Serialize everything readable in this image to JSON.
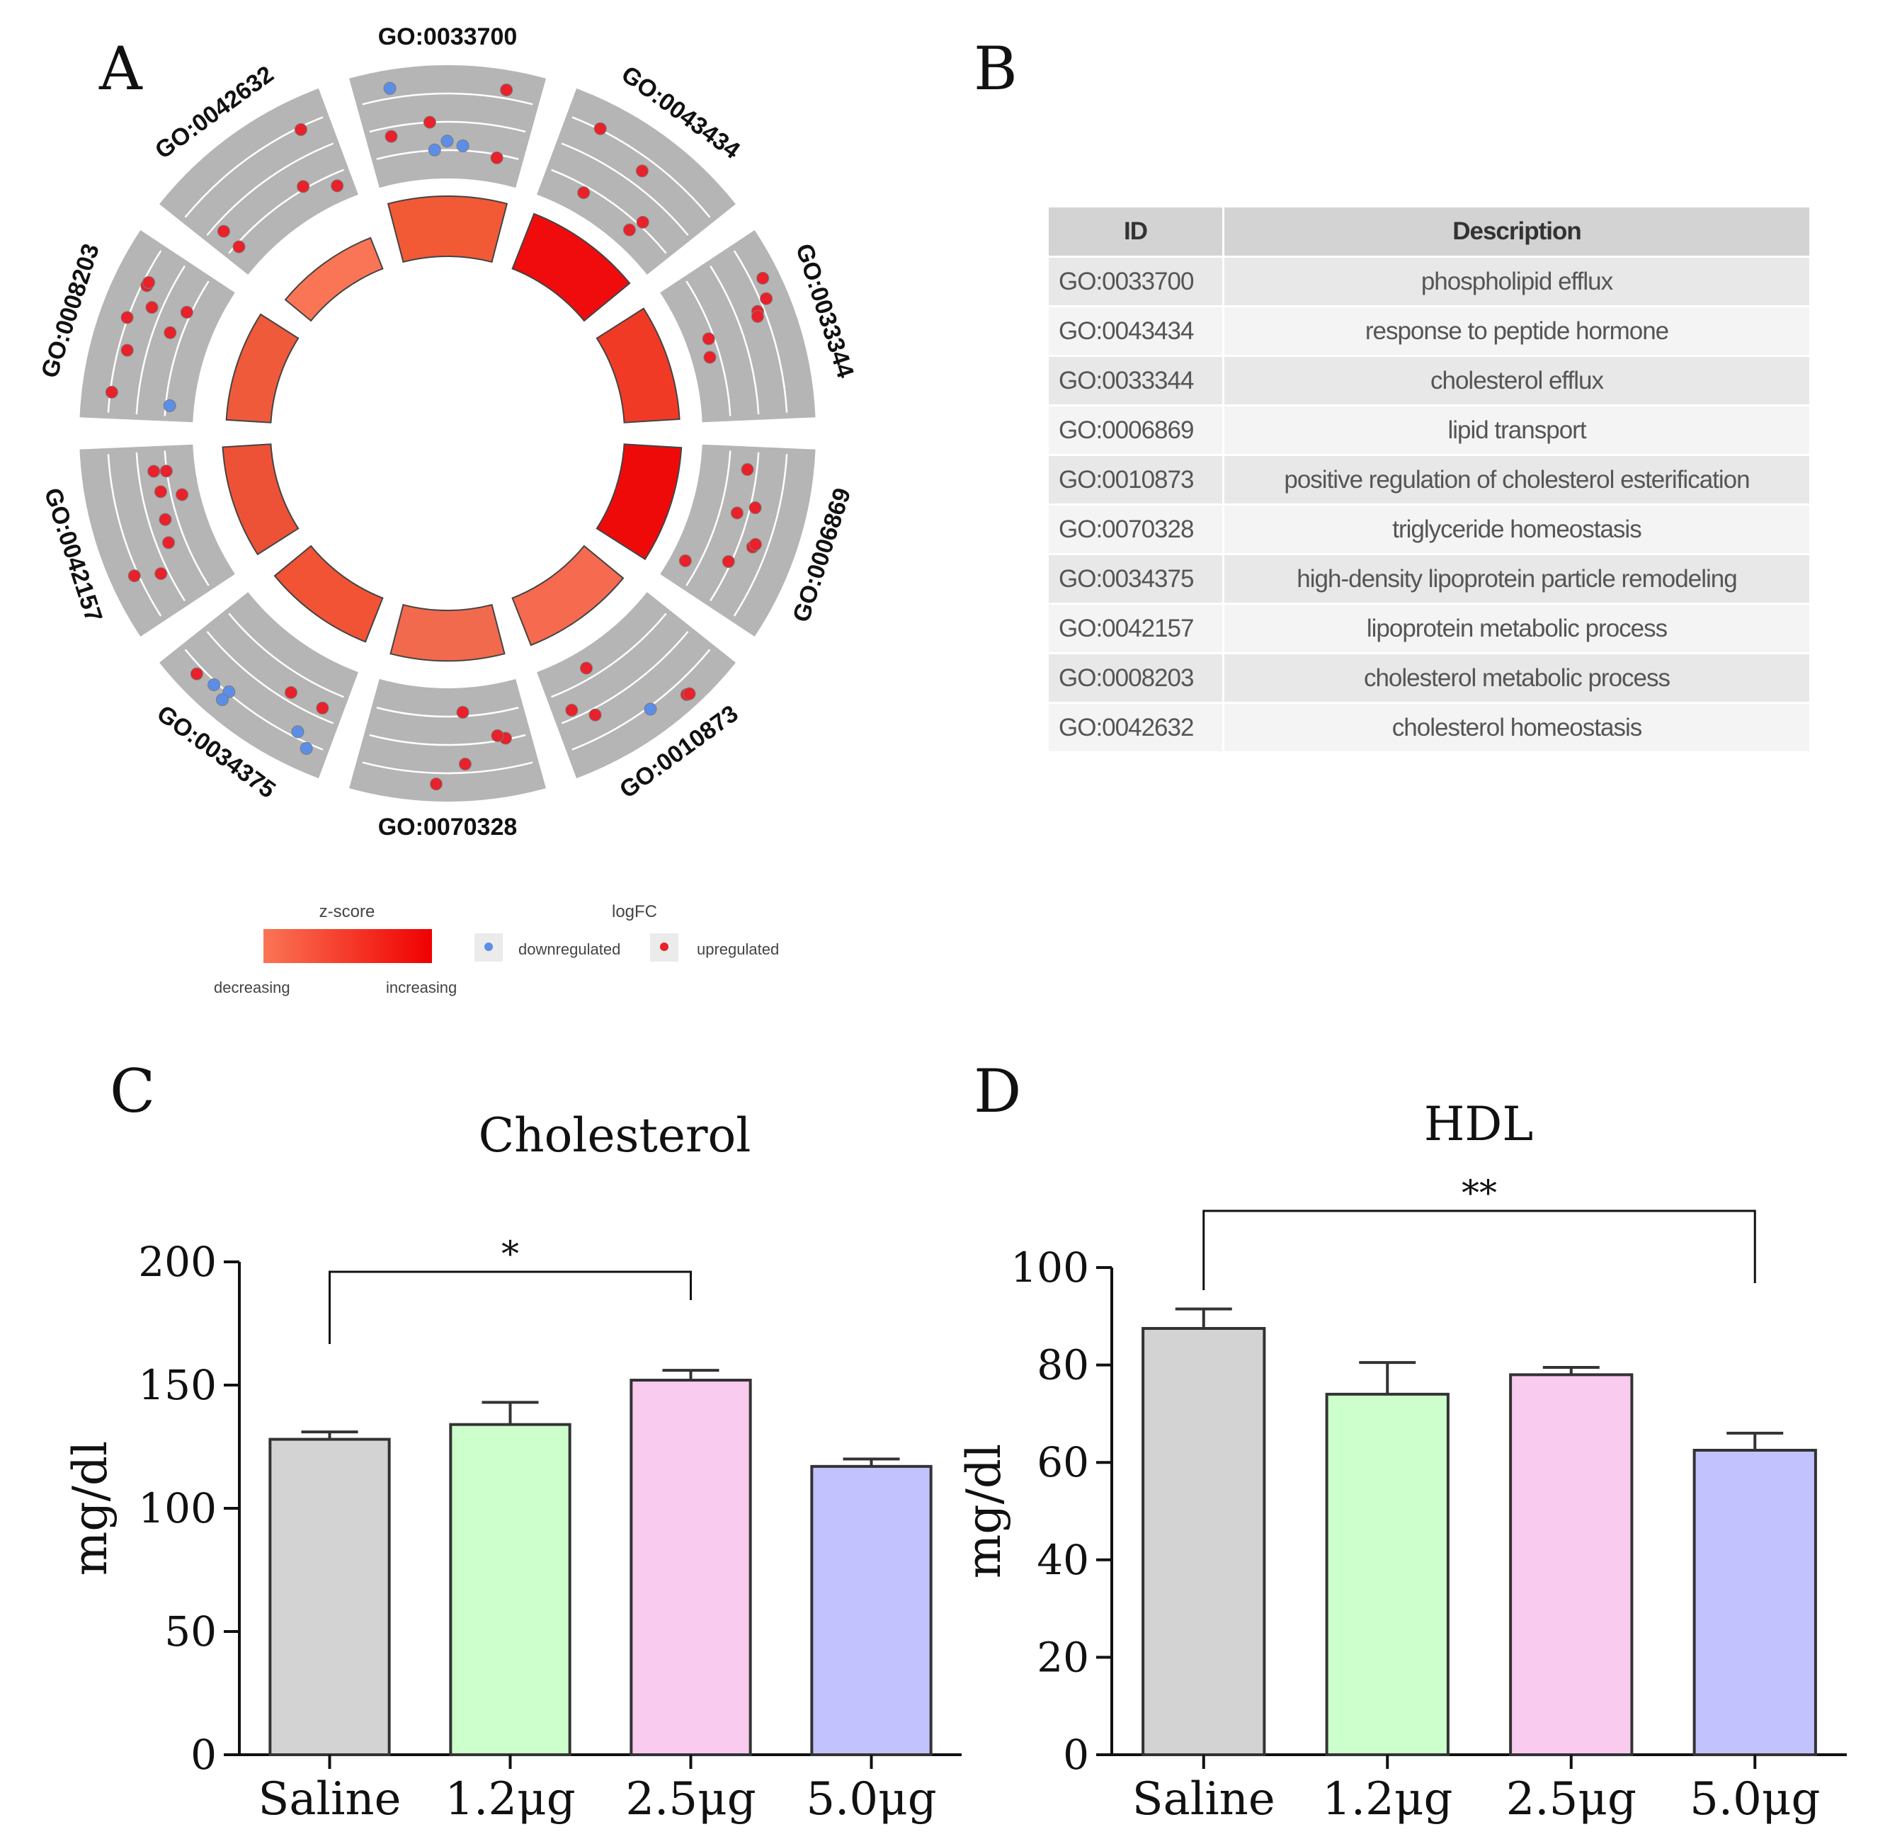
{
  "panels": {
    "a": "A",
    "b": "B",
    "c": "C",
    "d": "D"
  },
  "goplot": {
    "terms": [
      "GO:0033700",
      "GO:0043434",
      "GO:0033344",
      "GO:0006869",
      "GO:0010873",
      "GO:0070328",
      "GO:0034375",
      "GO:0042157",
      "GO:0008203",
      "GO:0042632"
    ],
    "zscore_color": [
      "#f25a35",
      "#f00c0c",
      "#f13a26",
      "#ef0a0a",
      "#f66a50",
      "#f26a4e",
      "#f15334",
      "#ee5236",
      "#ef5a3a",
      "#fa7555"
    ],
    "bar_height": [
      1.0,
      0.98,
      0.92,
      0.95,
      0.84,
      0.84,
      0.78,
      0.8,
      0.74,
      0.55
    ],
    "genes_up": [
      4,
      5,
      6,
      7,
      5,
      5,
      3,
      8,
      8,
      5
    ],
    "genes_down": [
      4,
      0,
      0,
      0,
      1,
      0,
      5,
      0,
      1,
      0
    ],
    "legend": {
      "zscore_title": "z-score",
      "decreasing": "decreasing",
      "increasing": "increasing",
      "logfc_title": "logFC",
      "down": "downregulated",
      "up": "upregulated",
      "down_color": "#5c8ee8",
      "up_color": "#e8212a"
    }
  },
  "table": {
    "headers": [
      "ID",
      "Description"
    ],
    "rows": [
      [
        "GO:0033700",
        "phospholipid efflux"
      ],
      [
        "GO:0043434",
        "response to peptide hormone"
      ],
      [
        "GO:0033344",
        "cholesterol efflux"
      ],
      [
        "GO:0006869",
        "lipid transport"
      ],
      [
        "GO:0010873",
        "positive regulation of cholesterol esterification"
      ],
      [
        "GO:0070328",
        "triglyceride homeostasis"
      ],
      [
        "GO:0034375",
        "high-density lipoprotein particle remodeling"
      ],
      [
        "GO:0042157",
        "lipoprotein metabolic process"
      ],
      [
        "GO:0008203",
        "cholesterol metabolic process"
      ],
      [
        "GO:0042632",
        "cholesterol homeostasis"
      ]
    ]
  },
  "chart_data": [
    {
      "type": "bar",
      "title": "Cholesterol",
      "categories": [
        "Saline",
        "1.2μg",
        "2.5μg",
        "5.0μg"
      ],
      "values": [
        128,
        134,
        152,
        117
      ],
      "errors": [
        3,
        9,
        4,
        3
      ],
      "colors": [
        "#d3d3d3",
        "#ccffcc",
        "#f9cbef",
        "#c2c2ff"
      ],
      "xlabel": "",
      "ylabel": "mg/dl",
      "ylim": [
        0,
        200
      ],
      "yticks": [
        "0",
        "50",
        "100",
        "150",
        "200"
      ],
      "significance": {
        "from": "Saline",
        "to": "2.5μg",
        "label": "*"
      }
    },
    {
      "type": "bar",
      "title": "HDL",
      "categories": [
        "Saline",
        "1.2μg",
        "2.5μg",
        "5.0μg"
      ],
      "values": [
        87.5,
        74,
        78,
        62.5
      ],
      "errors": [
        4,
        6.5,
        1.5,
        3.5
      ],
      "colors": [
        "#d3d3d3",
        "#ccffcc",
        "#f9cbef",
        "#c2c2ff"
      ],
      "xlabel": "",
      "ylabel": "mg/dl",
      "ylim": [
        0,
        100
      ],
      "yticks": [
        "0",
        "20",
        "40",
        "60",
        "80",
        "100"
      ],
      "significance": {
        "from": "Saline",
        "to": "5.0μg",
        "label": "**"
      }
    }
  ]
}
